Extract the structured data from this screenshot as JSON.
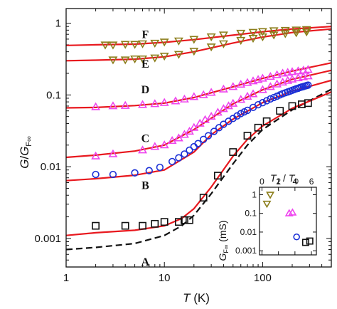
{
  "chart_data": [
    {
      "type": "scatter",
      "xlabel": "T (K)",
      "ylabel": "G/G_F∞",
      "x_scale": "log",
      "y_scale": "log",
      "xlim": [
        1,
        500
      ],
      "ylim": [
        0.0004,
        1.6
      ],
      "x_ticks": [
        1,
        10,
        100
      ],
      "x_tick_labels": [
        "1",
        "10",
        "100"
      ],
      "y_ticks": [
        0.001,
        0.01,
        0.1,
        1
      ],
      "y_tick_labels": [
        "0.001",
        "0.01",
        "0.1",
        "1"
      ],
      "colors": {
        "fit_curve": "#e8181e",
        "dashed_curve": "#111111",
        "A": "#111111",
        "B": "#1a2fd6",
        "C": "#ee44ee",
        "D": "#ee44ee",
        "E": "#8b7d1a",
        "F": "#8b7d1a"
      },
      "series": [
        {
          "name": "F",
          "label_at": [
            6.4,
            0.62
          ],
          "marker": "triangle-down",
          "x": [
            2.5,
            3.0,
            4.0,
            5.0,
            6.0,
            8.0,
            10,
            14,
            20,
            30,
            40,
            60,
            80,
            100,
            130,
            170,
            220,
            280
          ],
          "y": [
            0.5,
            0.5,
            0.51,
            0.51,
            0.52,
            0.53,
            0.55,
            0.57,
            0.6,
            0.65,
            0.69,
            0.73,
            0.75,
            0.77,
            0.79,
            0.8,
            0.81,
            0.82
          ]
        },
        {
          "name": "E",
          "label_at": [
            6.4,
            0.24
          ],
          "marker": "triangle-down",
          "x": [
            3.0,
            4.0,
            5.0,
            6.0,
            8.0,
            10,
            14,
            20,
            30,
            40,
            60,
            80,
            100,
            130,
            170,
            220,
            280
          ],
          "y": [
            0.31,
            0.31,
            0.32,
            0.32,
            0.33,
            0.35,
            0.37,
            0.41,
            0.47,
            0.52,
            0.58,
            0.62,
            0.65,
            0.69,
            0.72,
            0.74,
            0.76
          ]
        },
        {
          "name": "D",
          "label_at": [
            6.4,
            0.105
          ],
          "marker": "triangle-up",
          "x": [
            2.0,
            3.0,
            4.0,
            6.0,
            8.0,
            10,
            13,
            16,
            20,
            25,
            30,
            40,
            50,
            60,
            70,
            80,
            90,
            100,
            120,
            140,
            160,
            180,
            200,
            230,
            260,
            290
          ],
          "y": [
            0.068,
            0.07,
            0.071,
            0.073,
            0.075,
            0.078,
            0.082,
            0.087,
            0.094,
            0.1,
            0.108,
            0.12,
            0.13,
            0.14,
            0.148,
            0.156,
            0.163,
            0.17,
            0.18,
            0.19,
            0.2,
            0.205,
            0.21,
            0.215,
            0.22,
            0.225
          ]
        },
        {
          "name": "C",
          "label_at": [
            6.4,
            0.022
          ],
          "marker": "triangle-up",
          "x": [
            2.0,
            3.0,
            6.0,
            8.0,
            10,
            12,
            14,
            16,
            18,
            20,
            23,
            26,
            30,
            35,
            40,
            45,
            50,
            60,
            70,
            80,
            100,
            120,
            140,
            160,
            180,
            200,
            230,
            260,
            290
          ],
          "y": [
            0.014,
            0.015,
            0.017,
            0.019,
            0.02,
            0.023,
            0.025,
            0.028,
            0.031,
            0.035,
            0.04,
            0.045,
            0.05,
            0.057,
            0.064,
            0.07,
            0.076,
            0.086,
            0.095,
            0.103,
            0.118,
            0.13,
            0.141,
            0.15,
            0.158,
            0.165,
            0.172,
            0.178,
            0.183
          ]
        },
        {
          "name": "B",
          "label_at": [
            6.4,
            0.0049
          ],
          "marker": "circle",
          "x": [
            2.0,
            3.0,
            5.0,
            7.0,
            9.0,
            12,
            14,
            16,
            18,
            20,
            22,
            25,
            28,
            32,
            36,
            40,
            45,
            50,
            55,
            60,
            65,
            70,
            80,
            90,
            100,
            110,
            120,
            130,
            140,
            150,
            160,
            170,
            180,
            190,
            200,
            210,
            220,
            230,
            240,
            250,
            260,
            270,
            280,
            290
          ],
          "y": [
            0.0078,
            0.0078,
            0.0082,
            0.0088,
            0.0098,
            0.0118,
            0.0133,
            0.015,
            0.017,
            0.019,
            0.021,
            0.024,
            0.027,
            0.031,
            0.035,
            0.039,
            0.043,
            0.047,
            0.051,
            0.055,
            0.058,
            0.061,
            0.067,
            0.073,
            0.078,
            0.083,
            0.088,
            0.092,
            0.096,
            0.1,
            0.104,
            0.107,
            0.11,
            0.113,
            0.116,
            0.119,
            0.122,
            0.124,
            0.127,
            0.129,
            0.131,
            0.133,
            0.135,
            0.137
          ]
        },
        {
          "name": "A",
          "label_at": [
            6.4,
            0.00042
          ],
          "marker": "square",
          "x": [
            2.0,
            4.0,
            6.0,
            8.0,
            10,
            14,
            16,
            18,
            25,
            35,
            50,
            70,
            90,
            110,
            150,
            200,
            250,
            290
          ],
          "y": [
            0.0015,
            0.0015,
            0.0015,
            0.0016,
            0.0017,
            0.0017,
            0.0018,
            0.0018,
            0.0037,
            0.0075,
            0.016,
            0.027,
            0.035,
            0.043,
            0.06,
            0.07,
            0.074,
            0.077
          ]
        }
      ],
      "fit_curves": [
        {
          "name": "F",
          "x": [
            1,
            2,
            5,
            10,
            20,
            50,
            100,
            200,
            500
          ],
          "y": [
            0.49,
            0.5,
            0.51,
            0.54,
            0.59,
            0.68,
            0.76,
            0.83,
            0.9
          ]
        },
        {
          "name": "E",
          "x": [
            1,
            2,
            5,
            10,
            20,
            50,
            100,
            200,
            500
          ],
          "y": [
            0.3,
            0.305,
            0.315,
            0.34,
            0.4,
            0.53,
            0.64,
            0.74,
            0.83
          ]
        },
        {
          "name": "D",
          "x": [
            1,
            2,
            5,
            10,
            20,
            50,
            100,
            200,
            500
          ],
          "y": [
            0.066,
            0.067,
            0.071,
            0.077,
            0.092,
            0.13,
            0.17,
            0.215,
            0.28
          ]
        },
        {
          "name": "C",
          "x": [
            1,
            2,
            5,
            10,
            20,
            50,
            100,
            200,
            500
          ],
          "y": [
            0.0135,
            0.0145,
            0.0165,
            0.02,
            0.033,
            0.075,
            0.118,
            0.165,
            0.22
          ]
        },
        {
          "name": "B",
          "x": [
            1,
            2,
            5,
            10,
            20,
            30,
            50,
            100,
            200,
            500
          ],
          "y": [
            0.0064,
            0.0068,
            0.0076,
            0.009,
            0.016,
            0.028,
            0.046,
            0.078,
            0.113,
            0.16
          ]
        },
        {
          "name": "A",
          "x": [
            1,
            2,
            5,
            10,
            15,
            20,
            30,
            50,
            70,
            100,
            200,
            500
          ],
          "y": [
            0.0011,
            0.0012,
            0.0013,
            0.0015,
            0.0019,
            0.0026,
            0.0052,
            0.014,
            0.024,
            0.037,
            0.065,
            0.11
          ]
        }
      ],
      "dashed_curve": {
        "x": [
          1,
          2,
          5,
          10,
          15,
          20,
          30,
          50,
          70,
          100,
          200,
          500
        ],
        "y": [
          0.0007,
          0.00075,
          0.00085,
          0.0011,
          0.0015,
          0.0021,
          0.0042,
          0.011,
          0.02,
          0.033,
          0.062,
          0.12
        ]
      },
      "labels": [
        "F",
        "E",
        "D",
        "C",
        "B",
        "A"
      ]
    },
    {
      "type": "scatter",
      "title": "inset",
      "top_xlabel": "T_1 / T_0",
      "ylabel": "G_F∞ (mS)",
      "x_scale": "linear",
      "y_scale": "log",
      "xlim": [
        -0.3,
        6.6
      ],
      "ylim": [
        0.0006,
        2.5
      ],
      "x_ticks": [
        0,
        2,
        4,
        6
      ],
      "x_tick_labels": [
        "0",
        "2",
        "4",
        "6"
      ],
      "y_ticks": [
        0.001,
        0.01,
        0.1,
        1
      ],
      "y_tick_labels": [
        "0.001",
        "0.01",
        "0.1",
        "1"
      ],
      "points": [
        {
          "x": 1.0,
          "y": 1.0,
          "marker": "triangle-down",
          "color": "#8b7d1a"
        },
        {
          "x": 0.6,
          "y": 0.33,
          "marker": "triangle-down",
          "color": "#8b7d1a"
        },
        {
          "x": 3.3,
          "y": 0.1,
          "marker": "triangle-up",
          "color": "#ee44ee"
        },
        {
          "x": 3.7,
          "y": 0.11,
          "marker": "triangle-up",
          "color": "#ee44ee"
        },
        {
          "x": 4.2,
          "y": 0.0055,
          "marker": "circle",
          "color": "#1a2fd6"
        },
        {
          "x": 5.3,
          "y": 0.0028,
          "marker": "square",
          "color": "#111111"
        },
        {
          "x": 5.8,
          "y": 0.0033,
          "marker": "square",
          "color": "#111111"
        }
      ]
    }
  ]
}
